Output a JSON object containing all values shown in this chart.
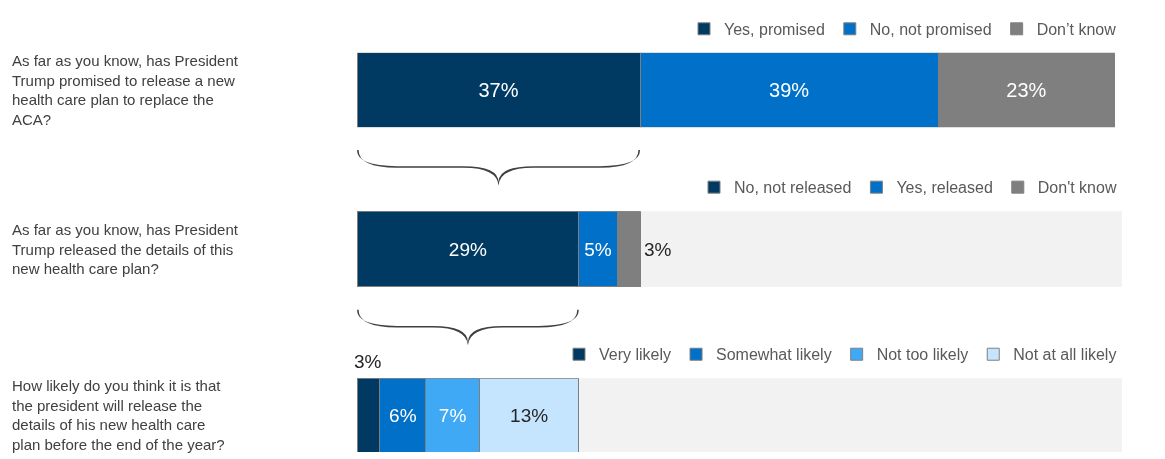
{
  "chart_data": [
    {
      "type": "bar",
      "orientation": "horizontal",
      "stacked": true,
      "categories": [
        "As far as you know, has President Trump promised to release a new health care plan to replace the ACA?"
      ],
      "legend": "top right",
      "series": [
        {
          "name": "Yes, promised",
          "color": "#003a63",
          "values": [
            37
          ],
          "value_labels": [
            "37%"
          ]
        },
        {
          "name": "No, not promised",
          "color": "#0070c8",
          "values": [
            39
          ],
          "value_labels": [
            "39%"
          ]
        },
        {
          "name": "Don’t know",
          "color": "#7f7f7f",
          "values": [
            23
          ],
          "value_labels": [
            "23%"
          ]
        }
      ]
    },
    {
      "type": "bar",
      "orientation": "horizontal",
      "stacked": true,
      "categories": [
        "As far as you know, has President Trump released the details of this new health care plan?"
      ],
      "legend": "top right",
      "bands": [
        {
          "axis": "x",
          "from": 0,
          "to": 100,
          "color": "#f2f2f2"
        }
      ],
      "series": [
        {
          "name": "No, not released",
          "color": "#003a63",
          "values": [
            29
          ],
          "value_labels": [
            "29%"
          ]
        },
        {
          "name": "Yes, released",
          "color": "#0070c8",
          "values": [
            5
          ],
          "value_labels": [
            "5%"
          ]
        },
        {
          "name": "Don't know",
          "color": "#7f7f7f",
          "values": [
            3
          ],
          "value_labels": [
            "3%"
          ]
        }
      ]
    },
    {
      "type": "bar",
      "orientation": "horizontal",
      "stacked": true,
      "categories": [
        "How likely do you think it is that the president will release the details of his new health care plan before the end of the year?"
      ],
      "legend": "top right",
      "bands": [
        {
          "axis": "x",
          "from": 0,
          "to": 100,
          "color": "#f2f2f2"
        }
      ],
      "series": [
        {
          "name": "Very likely",
          "color": "#003a63",
          "values": [
            3
          ],
          "value_labels": [
            "3%"
          ]
        },
        {
          "name": "Somewhat likely",
          "color": "#0070c8",
          "values": [
            6
          ],
          "value_labels": [
            "6%"
          ]
        },
        {
          "name": "Not too likely",
          "color": "#3fa9f5",
          "values": [
            7
          ],
          "value_labels": [
            "7%"
          ]
        },
        {
          "name": "Not at all likely",
          "color": "#c5e5ff",
          "values": [
            13
          ],
          "value_labels": [
            "13%"
          ]
        }
      ]
    }
  ]
}
